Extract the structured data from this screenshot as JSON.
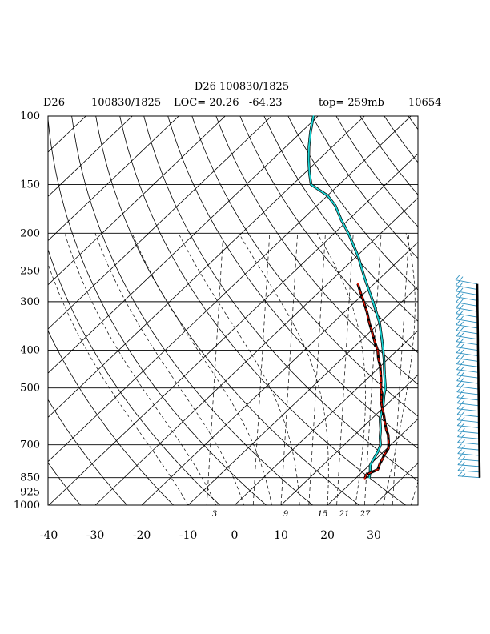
{
  "header": {
    "title": "D26 100830/1825",
    "station": "D26",
    "datetime": "100830/1825",
    "location": "LOC= 20.26   -64.23",
    "top": "top= 259mb",
    "extra": "10654"
  },
  "chart_data": {
    "type": "line",
    "chart_kind": "skew-T log-P sounding",
    "y_scale": "log",
    "y_axis_reversed": true,
    "ylim": [
      1000,
      100
    ],
    "pressure_ticks": [
      "100",
      "150",
      "200",
      "250",
      "300",
      "400",
      "500",
      "700",
      "850",
      "925",
      "1000"
    ],
    "pressure_values": [
      100,
      150,
      200,
      250,
      300,
      400,
      500,
      700,
      850,
      925,
      1000
    ],
    "temperature_ticks": [
      "-40",
      "-30",
      "-20",
      "-10",
      "0",
      "10",
      "20",
      "30"
    ],
    "temperature_values": [
      -40,
      -30,
      -20,
      -10,
      0,
      10,
      20,
      30
    ],
    "mixing_ratio_labels": [
      "3",
      "9",
      "15",
      "21",
      "27"
    ],
    "colors": {
      "temperature": "#000000",
      "temperature_overlay": "#dd1100",
      "second_profile": "#1ad3d3",
      "barb": "#2a8fbf"
    },
    "series": [
      {
        "role": "temperature",
        "points": [
          {
            "p": 854,
            "t": 22.0
          },
          {
            "p": 835,
            "t": 21.5
          },
          {
            "p": 810,
            "t": 22.8
          },
          {
            "p": 785,
            "t": 22.0
          },
          {
            "p": 765,
            "t": 21.5
          },
          {
            "p": 740,
            "t": 20.8
          },
          {
            "p": 715,
            "t": 20.3
          },
          {
            "p": 690,
            "t": 19.0
          },
          {
            "p": 660,
            "t": 17.2
          },
          {
            "p": 640,
            "t": 15.6
          },
          {
            "p": 615,
            "t": 13.8
          },
          {
            "p": 590,
            "t": 12.0
          },
          {
            "p": 565,
            "t": 10.0
          },
          {
            "p": 540,
            "t": 8.0
          },
          {
            "p": 515,
            "t": 6.3
          },
          {
            "p": 500,
            "t": 5.0
          },
          {
            "p": 480,
            "t": 3.5
          },
          {
            "p": 460,
            "t": 1.8
          },
          {
            "p": 440,
            "t": 0.0
          },
          {
            "p": 420,
            "t": -2.2
          },
          {
            "p": 400,
            "t": -4.2
          },
          {
            "p": 380,
            "t": -6.8
          },
          {
            "p": 360,
            "t": -9.4
          },
          {
            "p": 340,
            "t": -12.2
          },
          {
            "p": 320,
            "t": -15.0
          },
          {
            "p": 300,
            "t": -18.2
          },
          {
            "p": 285,
            "t": -20.8
          },
          {
            "p": 270,
            "t": -23.5
          }
        ]
      },
      {
        "role": "second_profile",
        "points": [
          {
            "p": 850,
            "t": 22.8
          },
          {
            "p": 820,
            "t": 21.6
          },
          {
            "p": 790,
            "t": 20.2
          },
          {
            "p": 760,
            "t": 19.5
          },
          {
            "p": 730,
            "t": 18.8
          },
          {
            "p": 700,
            "t": 17.8
          },
          {
            "p": 670,
            "t": 16.0
          },
          {
            "p": 640,
            "t": 14.4
          },
          {
            "p": 600,
            "t": 11.8
          },
          {
            "p": 560,
            "t": 9.8
          },
          {
            "p": 520,
            "t": 7.2
          },
          {
            "p": 500,
            "t": 6.0
          },
          {
            "p": 460,
            "t": 2.6
          },
          {
            "p": 420,
            "t": -1.0
          },
          {
            "p": 380,
            "t": -5.2
          },
          {
            "p": 340,
            "t": -10.0
          },
          {
            "p": 300,
            "t": -16.2
          },
          {
            "p": 260,
            "t": -23.5
          },
          {
            "p": 230,
            "t": -29.5
          },
          {
            "p": 200,
            "t": -37.0
          },
          {
            "p": 185,
            "t": -41.5
          },
          {
            "p": 170,
            "t": -46.0
          },
          {
            "p": 160,
            "t": -50.0
          },
          {
            "p": 150,
            "t": -56.0
          },
          {
            "p": 140,
            "t": -59.0
          },
          {
            "p": 130,
            "t": -62.0
          },
          {
            "p": 120,
            "t": -65.0
          },
          {
            "p": 110,
            "t": -68.0
          },
          {
            "p": 100,
            "t": -71.0
          }
        ]
      }
    ],
    "wind_barbs": {
      "count": 36,
      "p_top": 270,
      "p_bottom": 850
    }
  }
}
